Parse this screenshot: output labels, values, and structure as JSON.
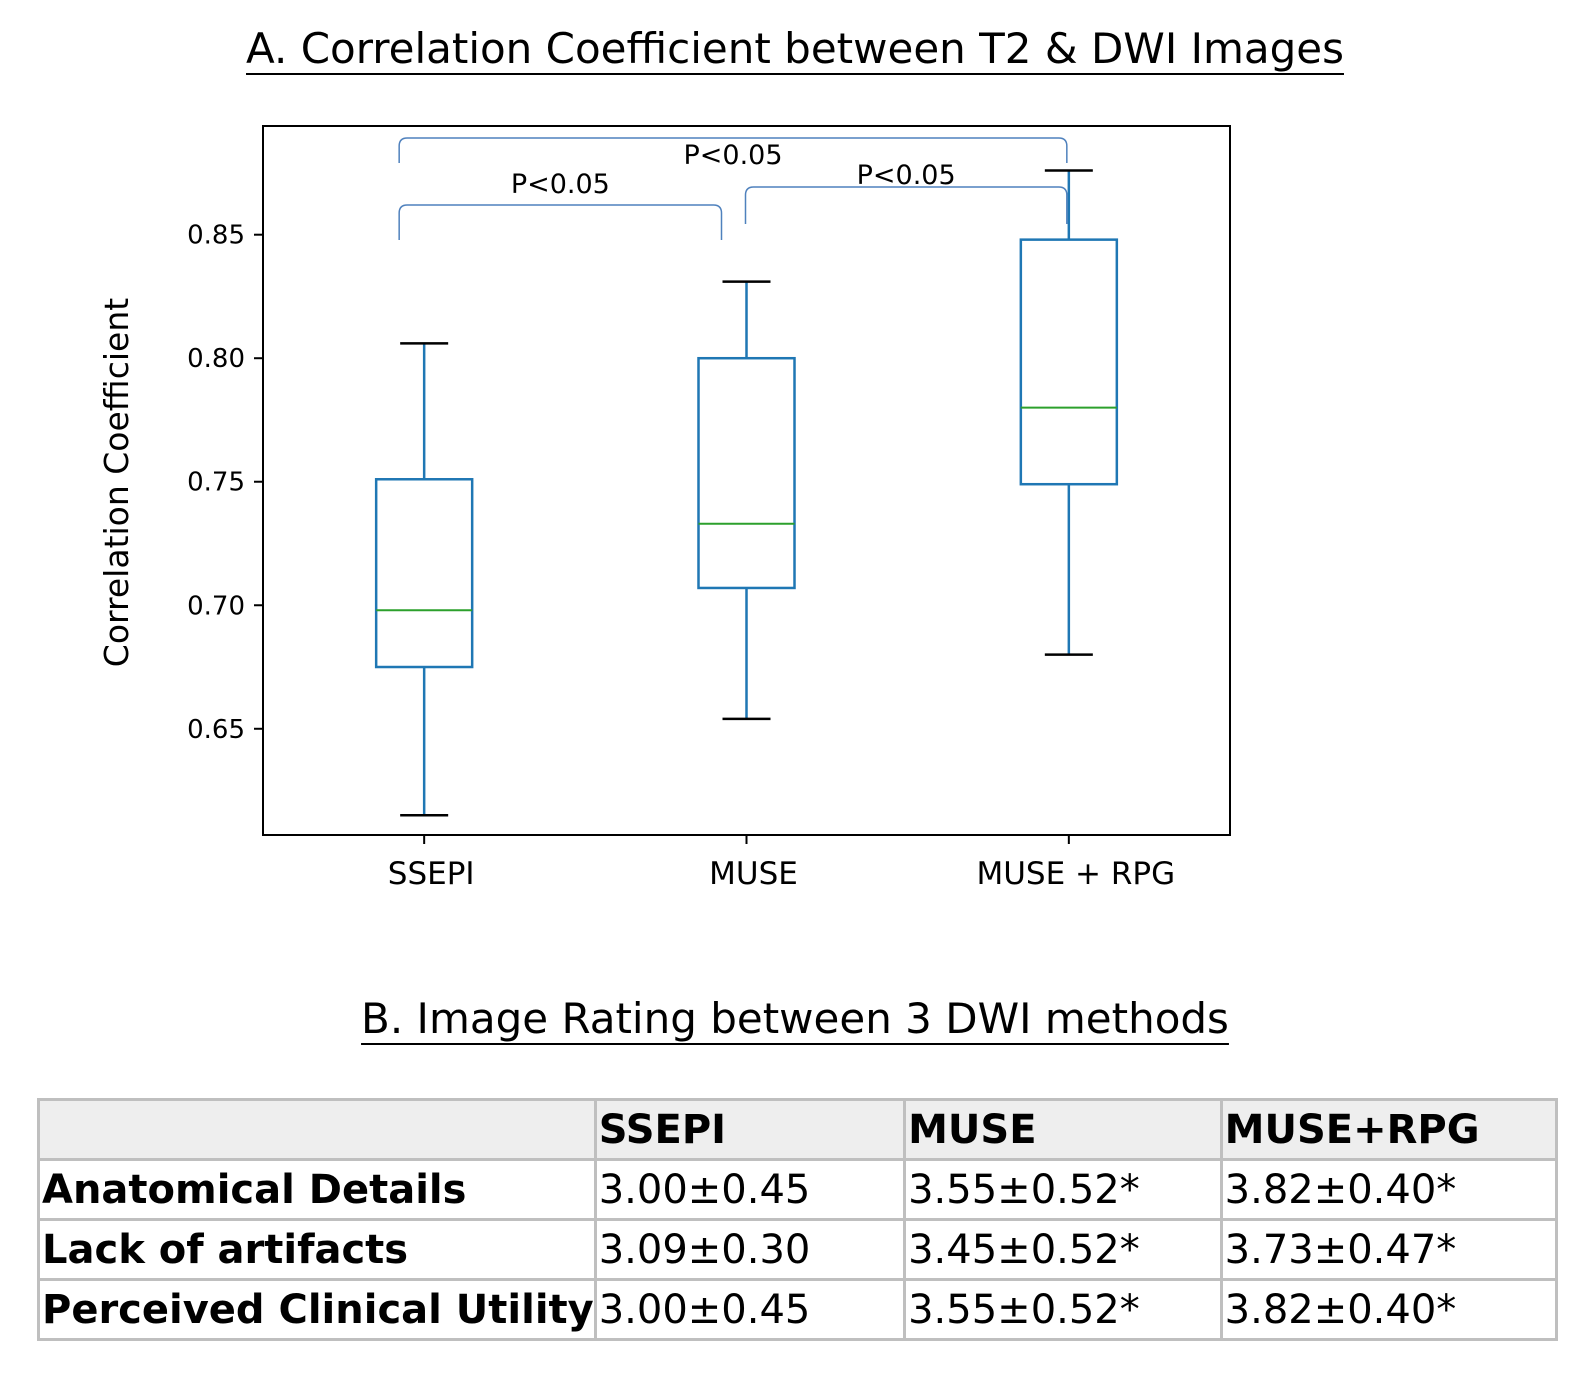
{
  "chart_data": {
    "type": "box",
    "title": "A. Correlation Coefficient between T2 & DWI Images",
    "ylabel": "Correlation Coefficient",
    "xlabel": "",
    "ylim": [
      0.607,
      0.894
    ],
    "yticks": [
      0.65,
      0.7,
      0.75,
      0.8,
      0.85
    ],
    "grid": false,
    "categories": [
      "SSEPI",
      "MUSE",
      "MUSE + RPG"
    ],
    "boxes": [
      {
        "whisker_low": 0.615,
        "q1": 0.675,
        "median": 0.698,
        "q3": 0.751,
        "whisker_high": 0.806
      },
      {
        "whisker_low": 0.654,
        "q1": 0.707,
        "median": 0.733,
        "q3": 0.8,
        "whisker_high": 0.831
      },
      {
        "whisker_low": 0.68,
        "q1": 0.749,
        "median": 0.78,
        "q3": 0.848,
        "whisker_high": 0.876
      }
    ],
    "annotations": [
      {
        "from": 0,
        "to": 1,
        "text": "P<0.05"
      },
      {
        "from": 1,
        "to": 2,
        "text": "P<0.05"
      },
      {
        "from": 0,
        "to": 2,
        "text": "P<0.05"
      }
    ],
    "colors": {
      "box": "#1f77b4",
      "median": "#2ca02c",
      "cap": "#000000",
      "bracket": "#4f81bd"
    }
  },
  "table": {
    "title": "B. Image Rating between 3 DWI methods",
    "headers": [
      "",
      "SSEPI",
      "MUSE",
      "MUSE+RPG"
    ],
    "rows": [
      {
        "label": "Anatomical Details",
        "values": [
          "3.00±0.45",
          "3.55±0.52*",
          "3.82±0.40*"
        ]
      },
      {
        "label": "Lack of artifacts",
        "values": [
          "3.09±0.30",
          "3.45±0.52*",
          "3.73±0.47*"
        ]
      },
      {
        "label": "Perceived Clinical Utility",
        "values": [
          "3.00±0.45",
          "3.55±0.52*",
          "3.82±0.40*"
        ]
      }
    ]
  }
}
